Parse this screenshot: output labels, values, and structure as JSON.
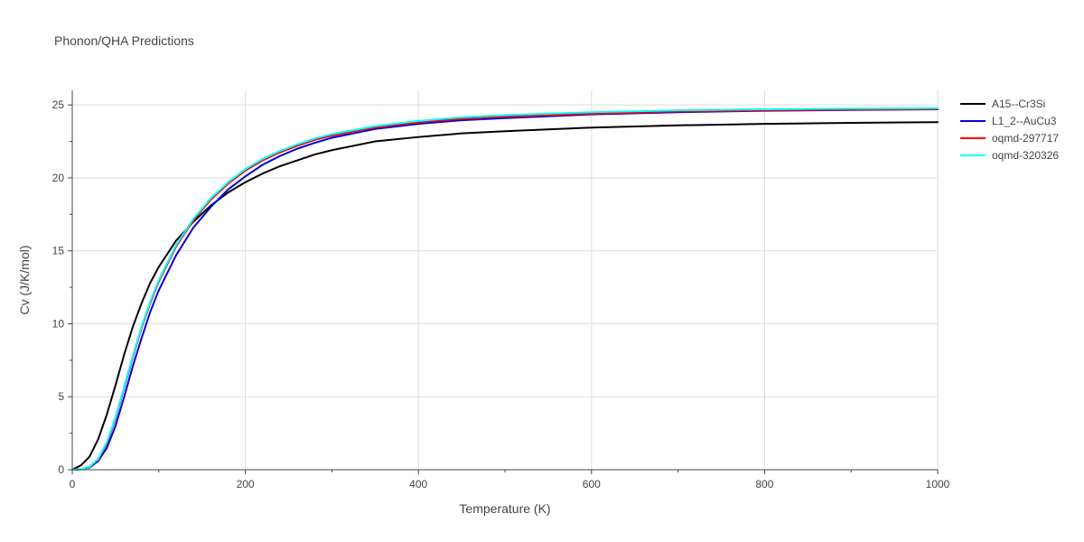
{
  "chart_data": {
    "type": "line",
    "title": "Phonon/QHA Predictions",
    "xlabel": "Temperature (K)",
    "ylabel": "Cv (J/K/mol)",
    "xlim": [
      0,
      1000
    ],
    "ylim": [
      0,
      26
    ],
    "xticks": [
      0,
      200,
      400,
      600,
      800,
      1000
    ],
    "yticks": [
      0,
      5,
      10,
      15,
      20,
      25
    ],
    "grid": true,
    "legend_position": "right-top",
    "series": [
      {
        "name": "A15--Cr3Si",
        "color": "#000000",
        "x": [
          0,
          10,
          20,
          30,
          40,
          50,
          60,
          70,
          80,
          90,
          100,
          120,
          140,
          160,
          180,
          200,
          220,
          240,
          260,
          280,
          300,
          350,
          400,
          450,
          500,
          600,
          700,
          800,
          900,
          1000
        ],
        "y": [
          0,
          0.3,
          0.9,
          2.1,
          3.8,
          5.8,
          7.9,
          9.8,
          11.4,
          12.8,
          13.9,
          15.7,
          17.0,
          18.1,
          19.0,
          19.7,
          20.3,
          20.8,
          21.2,
          21.6,
          21.9,
          22.5,
          22.8,
          23.05,
          23.2,
          23.45,
          23.6,
          23.7,
          23.77,
          23.82
        ]
      },
      {
        "name": "L1_2--AuCu3",
        "color": "#0000dd",
        "x": [
          0,
          10,
          20,
          30,
          40,
          50,
          60,
          70,
          80,
          90,
          100,
          120,
          140,
          160,
          180,
          200,
          220,
          240,
          260,
          280,
          300,
          350,
          400,
          450,
          500,
          600,
          700,
          800,
          900,
          1000
        ],
        "y": [
          0,
          0.02,
          0.15,
          0.6,
          1.5,
          3.0,
          5.0,
          7.1,
          9.0,
          10.8,
          12.3,
          14.7,
          16.6,
          18.0,
          19.2,
          20.1,
          20.9,
          21.5,
          22.0,
          22.4,
          22.75,
          23.35,
          23.7,
          23.95,
          24.1,
          24.35,
          24.5,
          24.6,
          24.65,
          24.7
        ]
      },
      {
        "name": "oqmd-297717",
        "color": "#ff0000",
        "x": [
          0,
          10,
          20,
          30,
          40,
          50,
          60,
          70,
          80,
          90,
          100,
          120,
          140,
          160,
          180,
          200,
          220,
          240,
          260,
          280,
          300,
          350,
          400,
          450,
          500,
          600,
          700,
          800,
          900,
          1000
        ],
        "y": [
          0,
          0.02,
          0.2,
          0.7,
          1.8,
          3.5,
          5.6,
          7.7,
          9.7,
          11.4,
          12.9,
          15.3,
          17.1,
          18.5,
          19.6,
          20.5,
          21.2,
          21.75,
          22.2,
          22.6,
          22.9,
          23.45,
          23.8,
          24.05,
          24.2,
          24.4,
          24.55,
          24.63,
          24.68,
          24.72
        ]
      },
      {
        "name": "oqmd-320326",
        "color": "#00ffff",
        "x": [
          0,
          10,
          20,
          30,
          40,
          50,
          60,
          70,
          80,
          90,
          100,
          120,
          140,
          160,
          180,
          200,
          220,
          240,
          260,
          280,
          300,
          350,
          400,
          450,
          500,
          600,
          700,
          800,
          900,
          1000
        ],
        "y": [
          0,
          0.02,
          0.2,
          0.75,
          1.9,
          3.6,
          5.7,
          7.8,
          9.8,
          11.5,
          13.0,
          15.4,
          17.2,
          18.6,
          19.7,
          20.6,
          21.3,
          21.85,
          22.3,
          22.7,
          23.0,
          23.55,
          23.9,
          24.15,
          24.3,
          24.5,
          24.63,
          24.7,
          24.75,
          24.78
        ]
      }
    ]
  }
}
